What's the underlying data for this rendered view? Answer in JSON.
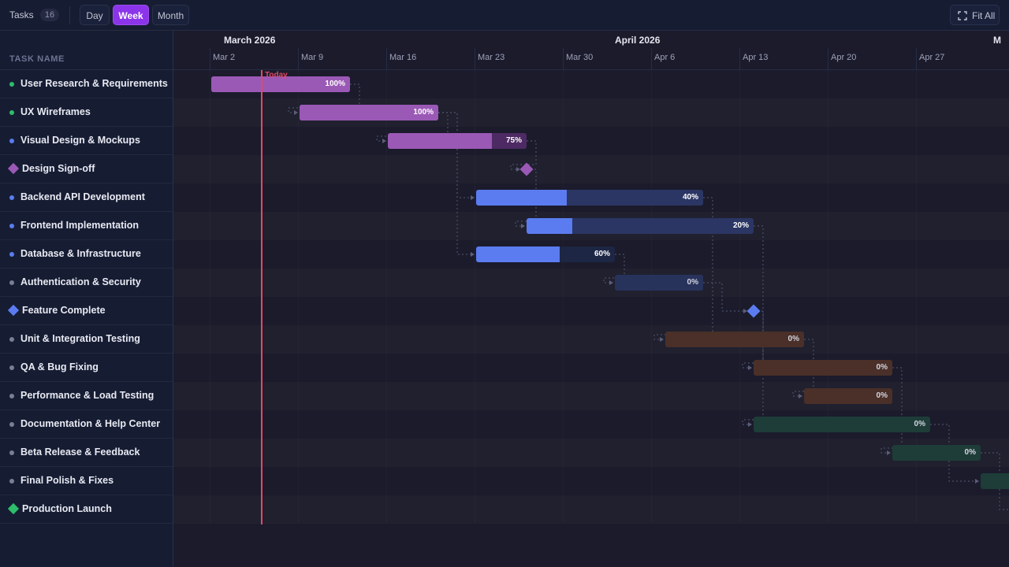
{
  "toolbar": {
    "tasks_label": "Tasks",
    "tasks_count": "16",
    "views": [
      "Day",
      "Week",
      "Month"
    ],
    "active_view": "Week",
    "fit_all_label": "Fit All",
    "fit_icon": "expand-corners-icon"
  },
  "sidebar": {
    "header": "TASK NAME",
    "tasks": [
      {
        "name": "User Research & Requirements",
        "kind": "task",
        "status_color": "#2ebd6b"
      },
      {
        "name": "UX Wireframes",
        "kind": "task",
        "status_color": "#2ebd6b"
      },
      {
        "name": "Visual Design & Mockups",
        "kind": "task",
        "status_color": "#5b7cf0"
      },
      {
        "name": "Design Sign-off",
        "kind": "milestone",
        "status_color": "#9b59b6"
      },
      {
        "name": "Backend API Development",
        "kind": "task",
        "status_color": "#5b7cf0"
      },
      {
        "name": "Frontend Implementation",
        "kind": "task",
        "status_color": "#5b7cf0"
      },
      {
        "name": "Database & Infrastructure",
        "kind": "task",
        "status_color": "#5b7cf0"
      },
      {
        "name": "Authentication & Security",
        "kind": "task",
        "status_color": "#7a7f94"
      },
      {
        "name": "Feature Complete",
        "kind": "milestone",
        "status_color": "#5b7cf0"
      },
      {
        "name": "Unit & Integration Testing",
        "kind": "task",
        "status_color": "#7a7f94"
      },
      {
        "name": "QA & Bug Fixing",
        "kind": "task",
        "status_color": "#7a7f94"
      },
      {
        "name": "Performance & Load Testing",
        "kind": "task",
        "status_color": "#7a7f94"
      },
      {
        "name": "Documentation & Help Center",
        "kind": "task",
        "status_color": "#7a7f94"
      },
      {
        "name": "Beta Release & Feedback",
        "kind": "task",
        "status_color": "#7a7f94"
      },
      {
        "name": "Final Polish & Fixes",
        "kind": "task",
        "status_color": "#7a7f94"
      },
      {
        "name": "Production Launch",
        "kind": "milestone",
        "status_color": "#2ebd6b"
      }
    ]
  },
  "timeline": {
    "months": [
      {
        "label": "March 2026",
        "start": "2026-03-01"
      },
      {
        "label": "April 2026",
        "start": "2026-04-01"
      },
      {
        "label": "M",
        "start": "2026-05-01"
      }
    ],
    "weeks": [
      "Mar 2",
      "Mar 9",
      "Mar 16",
      "Mar 23",
      "Mar 30",
      "Apr 6",
      "Apr 13",
      "Apr 20",
      "Apr 27"
    ],
    "today_label": "Today",
    "today": "2026-03-07"
  },
  "bars": [
    {
      "row": 0,
      "start": "2026-03-02",
      "end": "2026-03-13",
      "progress": 100,
      "label": "100%",
      "color": "#9b59b6",
      "track": "#9b59b6"
    },
    {
      "row": 1,
      "start": "2026-03-09",
      "end": "2026-03-20",
      "progress": 100,
      "label": "100%",
      "color": "#9b59b6",
      "track": "#9b59b6"
    },
    {
      "row": 2,
      "start": "2026-03-16",
      "end": "2026-03-27",
      "progress": 75,
      "label": "75%",
      "color": "#9b59b6",
      "track": "#4d2a63"
    },
    {
      "row": 4,
      "start": "2026-03-23",
      "end": "2026-04-10",
      "progress": 40,
      "label": "40%",
      "color": "#5b7cf0",
      "track": "#2b3664"
    },
    {
      "row": 5,
      "start": "2026-03-27",
      "end": "2026-04-14",
      "progress": 20,
      "label": "20%",
      "color": "#5b7cf0",
      "track": "#2b3664"
    },
    {
      "row": 6,
      "start": "2026-03-23",
      "end": "2026-04-03",
      "progress": 60,
      "label": "60%",
      "color": "#5b7cf0",
      "track": "#1d2644"
    },
    {
      "row": 7,
      "start": "2026-04-03",
      "end": "2026-04-10",
      "progress": 0,
      "label": "0%",
      "color": "#5b7cf0",
      "track": "#28335c"
    },
    {
      "row": 9,
      "start": "2026-04-07",
      "end": "2026-04-18",
      "progress": 0,
      "label": "0%",
      "color": "#e07a4a",
      "track": "#4a3028"
    },
    {
      "row": 10,
      "start": "2026-04-14",
      "end": "2026-04-25",
      "progress": 0,
      "label": "0%",
      "color": "#e07a4a",
      "track": "#4a3028"
    },
    {
      "row": 11,
      "start": "2026-04-18",
      "end": "2026-04-25",
      "progress": 0,
      "label": "0%",
      "color": "#e07a4a",
      "track": "#4a3028"
    },
    {
      "row": 12,
      "start": "2026-04-14",
      "end": "2026-04-28",
      "progress": 0,
      "label": "0%",
      "color": "#2ebd6b",
      "track": "#1e3d38"
    },
    {
      "row": 13,
      "start": "2026-04-25",
      "end": "2026-05-02",
      "progress": 0,
      "label": "0%",
      "color": "#2ebd6b",
      "track": "#1e3d38"
    },
    {
      "row": 14,
      "start": "2026-05-02",
      "end": "2026-05-09",
      "progress": 0,
      "label": "",
      "color": "#2ebd6b",
      "track": "#1e3d38"
    }
  ],
  "milestones": [
    {
      "row": 3,
      "date": "2026-03-27",
      "color": "#9b59b6"
    },
    {
      "row": 8,
      "date": "2026-04-14",
      "color": "#5b7cf0"
    },
    {
      "row": 15,
      "date": "2026-05-09",
      "color": "#2ebd6b"
    }
  ],
  "dependencies": [
    {
      "from": 0,
      "to": 1
    },
    {
      "from": 1,
      "to": 2
    },
    {
      "from": 2,
      "to": 3
    },
    {
      "from": 1,
      "to": 4
    },
    {
      "from": 3,
      "to": 5
    },
    {
      "from": 1,
      "to": 6
    },
    {
      "from": 6,
      "to": 7
    },
    {
      "from": 4,
      "to": 9
    },
    {
      "from": 7,
      "to": 8
    },
    {
      "from": 8,
      "to": 10
    },
    {
      "from": 9,
      "to": 11
    },
    {
      "from": 5,
      "to": 12
    },
    {
      "from": 10,
      "to": 13
    },
    {
      "from": 12,
      "to": 14
    },
    {
      "from": 13,
      "to": 15
    }
  ]
}
